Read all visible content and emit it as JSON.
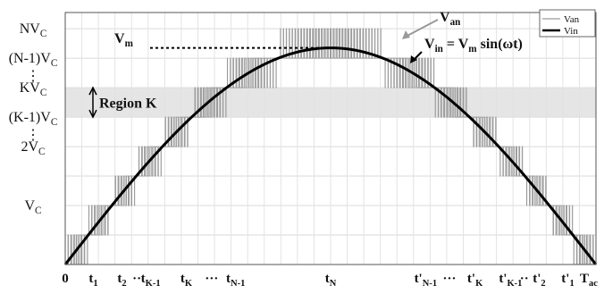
{
  "chart_data": {
    "type": "line",
    "title": "",
    "xlabel": "",
    "ylabel": "",
    "grid": true,
    "legend_position": "top-right",
    "N": 8,
    "ylim": [
      0,
      8.55
    ],
    "xlim": [
      0,
      1
    ],
    "y_tick_labels": [
      {
        "y": 8,
        "text": "NV",
        "sub": "C"
      },
      {
        "y": 7,
        "text": "(N-1)V",
        "sub": "C"
      },
      {
        "y": 6.4,
        "text": "⋮",
        "sub": ""
      },
      {
        "y": 6,
        "text": "KV",
        "sub": "C"
      },
      {
        "y": 5,
        "text": "(K-1)V",
        "sub": "C"
      },
      {
        "y": 4.4,
        "text": "⋮",
        "sub": ""
      },
      {
        "y": 4,
        "text": "2V",
        "sub": "C"
      },
      {
        "y": 2,
        "text": "V",
        "sub": "C"
      }
    ],
    "x_tick_labels": [
      {
        "x": 0.0,
        "text": "0",
        "sub": ""
      },
      {
        "x": 0.053,
        "text": "t",
        "sub": "1"
      },
      {
        "x": 0.107,
        "text": "t",
        "sub": "2"
      },
      {
        "x": 0.135,
        "text": "··",
        "sub": ""
      },
      {
        "x": 0.161,
        "text": "t",
        "sub": "K-1"
      },
      {
        "x": 0.228,
        "text": "t",
        "sub": "K"
      },
      {
        "x": 0.276,
        "text": "···",
        "sub": ""
      },
      {
        "x": 0.321,
        "text": "t",
        "sub": "N-1"
      },
      {
        "x": 0.5,
        "text": "t",
        "sub": "N"
      },
      {
        "x": 0.679,
        "text": "t'",
        "sub": "N-1"
      },
      {
        "x": 0.724,
        "text": "···",
        "sub": ""
      },
      {
        "x": 0.772,
        "text": "t'",
        "sub": "K"
      },
      {
        "x": 0.839,
        "text": "t'",
        "sub": "K-1"
      },
      {
        "x": 0.865,
        "text": "··",
        "sub": ""
      },
      {
        "x": 0.893,
        "text": "t'",
        "sub": "2"
      },
      {
        "x": 0.947,
        "text": "t'",
        "sub": "1"
      },
      {
        "x": 1.0,
        "text": "T",
        "sub": "ac"
      }
    ],
    "region": {
      "y0": 5,
      "y1": 6,
      "label": "Region K"
    },
    "series": [
      {
        "name": "Van",
        "kind": "multilevel-pwm",
        "color": "#9a9a9a"
      },
      {
        "name": "Vin",
        "kind": "sine",
        "amplitude": 7.35,
        "color": "#000000"
      }
    ],
    "annotations": {
      "vm": {
        "text": "V",
        "sub": "m"
      },
      "van": {
        "text": "V",
        "sub": "an"
      },
      "vin_eq": {
        "text": "V",
        "sub": "in",
        "rest": " = V",
        "sub2": "m",
        "tail": " sin(ωt)"
      }
    }
  }
}
